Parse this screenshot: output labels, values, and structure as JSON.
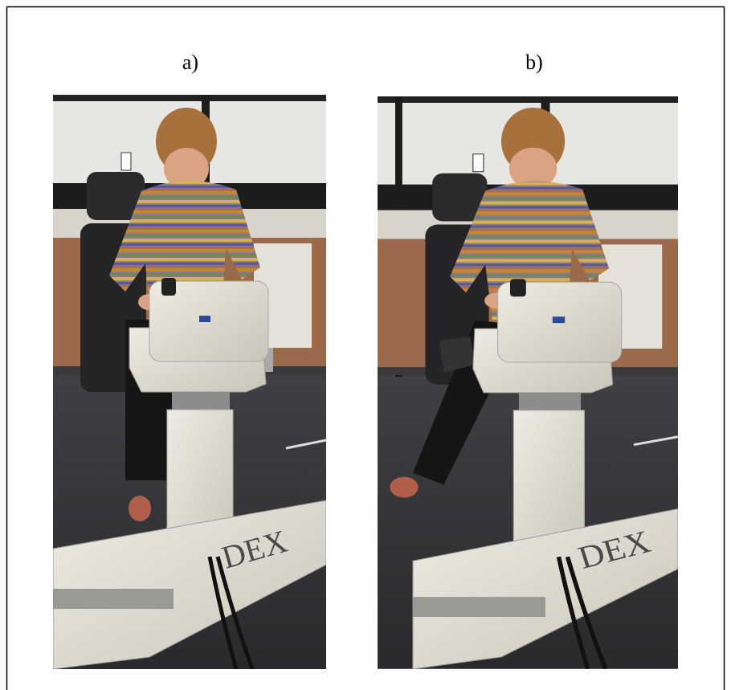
{
  "panels": [
    {
      "label": "a)",
      "machine_text": "DEX"
    },
    {
      "label": "b)",
      "machine_text": "DEX"
    }
  ]
}
